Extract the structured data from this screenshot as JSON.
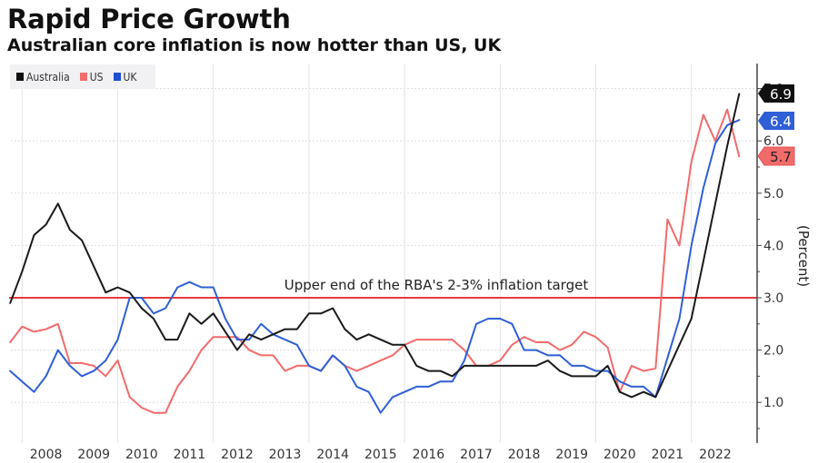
{
  "chart_data": {
    "type": "line",
    "title": "Rapid Price Growth",
    "subtitle": "Australian core inflation is now hotter than US, UK",
    "xlabel": "",
    "ylabel": "(Percent)",
    "x_start": 2007.75,
    "x_step": 0.25,
    "xlim": [
      2007.6,
      2023.35
    ],
    "ylim": [
      0.15,
      7.3
    ],
    "x_ticks": [
      2008,
      2009,
      2010,
      2011,
      2012,
      2013,
      2014,
      2015,
      2016,
      2017,
      2018,
      2019,
      2020,
      2021,
      2022
    ],
    "x_gridlines": [
      2008,
      2010,
      2012,
      2014,
      2016,
      2018,
      2020,
      2022
    ],
    "y_ticks": [
      1.0,
      2.0,
      3.0,
      4.0,
      5.0,
      6.0
    ],
    "y_tick_labels": [
      "1.0",
      "2.0",
      "3.0",
      "4.0",
      "5.0",
      "6.0"
    ],
    "y_gridlines": [
      1,
      2,
      4,
      5,
      6,
      7
    ],
    "grid": true,
    "legend_position": "top-left",
    "series": [
      {
        "name": "Australia",
        "color": "#1a1a1a",
        "end_label": "6.9",
        "values": [
          2.9,
          3.5,
          4.2,
          4.4,
          4.8,
          4.3,
          4.1,
          3.6,
          3.1,
          3.2,
          3.1,
          2.8,
          2.6,
          2.2,
          2.2,
          2.7,
          2.5,
          2.7,
          2.35,
          2.0,
          2.3,
          2.2,
          2.3,
          2.4,
          2.4,
          2.7,
          2.7,
          2.8,
          2.4,
          2.2,
          2.3,
          2.2,
          2.1,
          2.1,
          1.7,
          1.6,
          1.6,
          1.5,
          1.7,
          1.7,
          1.7,
          1.7,
          1.7,
          1.7,
          1.7,
          1.8,
          1.6,
          1.5,
          1.5,
          1.5,
          1.7,
          1.2,
          1.1,
          1.2,
          1.1,
          1.6,
          2.1,
          2.6,
          3.7,
          4.8,
          5.9,
          6.9
        ]
      },
      {
        "name": "US",
        "color": "#f26b6b",
        "end_label": "5.7",
        "values": [
          2.15,
          2.45,
          2.35,
          2.4,
          2.5,
          1.75,
          1.75,
          1.7,
          1.5,
          1.8,
          1.1,
          0.9,
          0.8,
          0.8,
          1.3,
          1.6,
          2.0,
          2.25,
          2.25,
          2.25,
          2.0,
          1.9,
          1.9,
          1.6,
          1.7,
          1.7,
          1.6,
          1.9,
          1.7,
          1.6,
          1.7,
          1.8,
          1.9,
          2.1,
          2.2,
          2.2,
          2.2,
          2.2,
          2.0,
          1.7,
          1.7,
          1.8,
          2.1,
          2.25,
          2.15,
          2.15,
          2.0,
          2.1,
          2.35,
          2.25,
          2.05,
          1.2,
          1.7,
          1.6,
          1.65,
          4.5,
          4.0,
          5.6,
          6.5,
          6.0,
          6.6,
          5.7
        ]
      },
      {
        "name": "UK",
        "color": "#2f5fd6",
        "end_label": "6.4",
        "values": [
          1.6,
          1.4,
          1.2,
          1.5,
          2.0,
          1.7,
          1.5,
          1.6,
          1.8,
          2.2,
          3.0,
          3.0,
          2.7,
          2.8,
          3.2,
          3.3,
          3.2,
          3.2,
          2.6,
          2.2,
          2.2,
          2.5,
          2.3,
          2.2,
          2.1,
          1.7,
          1.6,
          1.9,
          1.7,
          1.3,
          1.2,
          0.8,
          1.1,
          1.2,
          1.3,
          1.3,
          1.4,
          1.4,
          1.8,
          2.5,
          2.6,
          2.6,
          2.5,
          2.0,
          2.0,
          1.9,
          1.9,
          1.7,
          1.7,
          1.6,
          1.6,
          1.4,
          1.3,
          1.3,
          1.1,
          1.85,
          2.6,
          4.0,
          5.1,
          5.95,
          6.3,
          6.4
        ]
      }
    ],
    "reference_line": {
      "value": 3.0,
      "color": "#e8383d",
      "label": "Upper end of the RBA's 2-3% inflation target"
    }
  },
  "legend": [
    {
      "label": "Australia",
      "color": "#111111"
    },
    {
      "label": "US",
      "color": "#f26b6b"
    },
    {
      "label": "UK",
      "color": "#1f4fd1"
    }
  ]
}
